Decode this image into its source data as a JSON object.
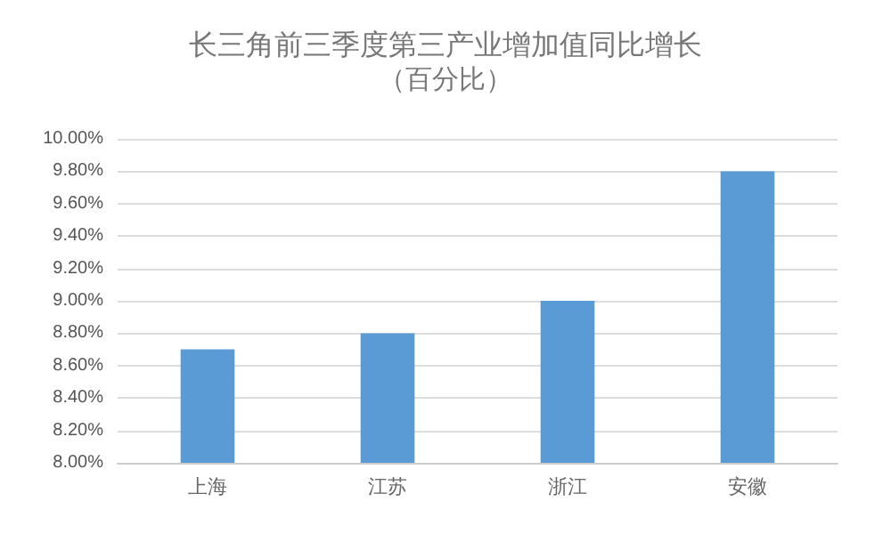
{
  "chart_data": {
    "type": "bar",
    "title": "长三角前三季度第三产业增加值同比增长",
    "subtitle": "（百分比）",
    "categories": [
      "上海",
      "江苏",
      "浙江",
      "安徽"
    ],
    "values": [
      8.7,
      8.8,
      9.0,
      9.8
    ],
    "color": "#5b9bd5",
    "ylim": [
      8,
      10
    ],
    "yticks": [
      {
        "value": 8,
        "label": "8.00%"
      },
      {
        "value": 8.2,
        "label": "8.20%"
      },
      {
        "value": 8.4,
        "label": "8.40%"
      },
      {
        "value": 8.6,
        "label": "8.60%"
      },
      {
        "value": 8.8,
        "label": "8.80%"
      },
      {
        "value": 9,
        "label": "9.00%"
      },
      {
        "value": 9.2,
        "label": "9.20%"
      },
      {
        "value": 9.4,
        "label": "9.40%"
      },
      {
        "value": 9.6,
        "label": "9.60%"
      },
      {
        "value": 9.8,
        "label": "9.80%"
      },
      {
        "value": 10,
        "label": "10.00%"
      }
    ],
    "grid": "y"
  }
}
